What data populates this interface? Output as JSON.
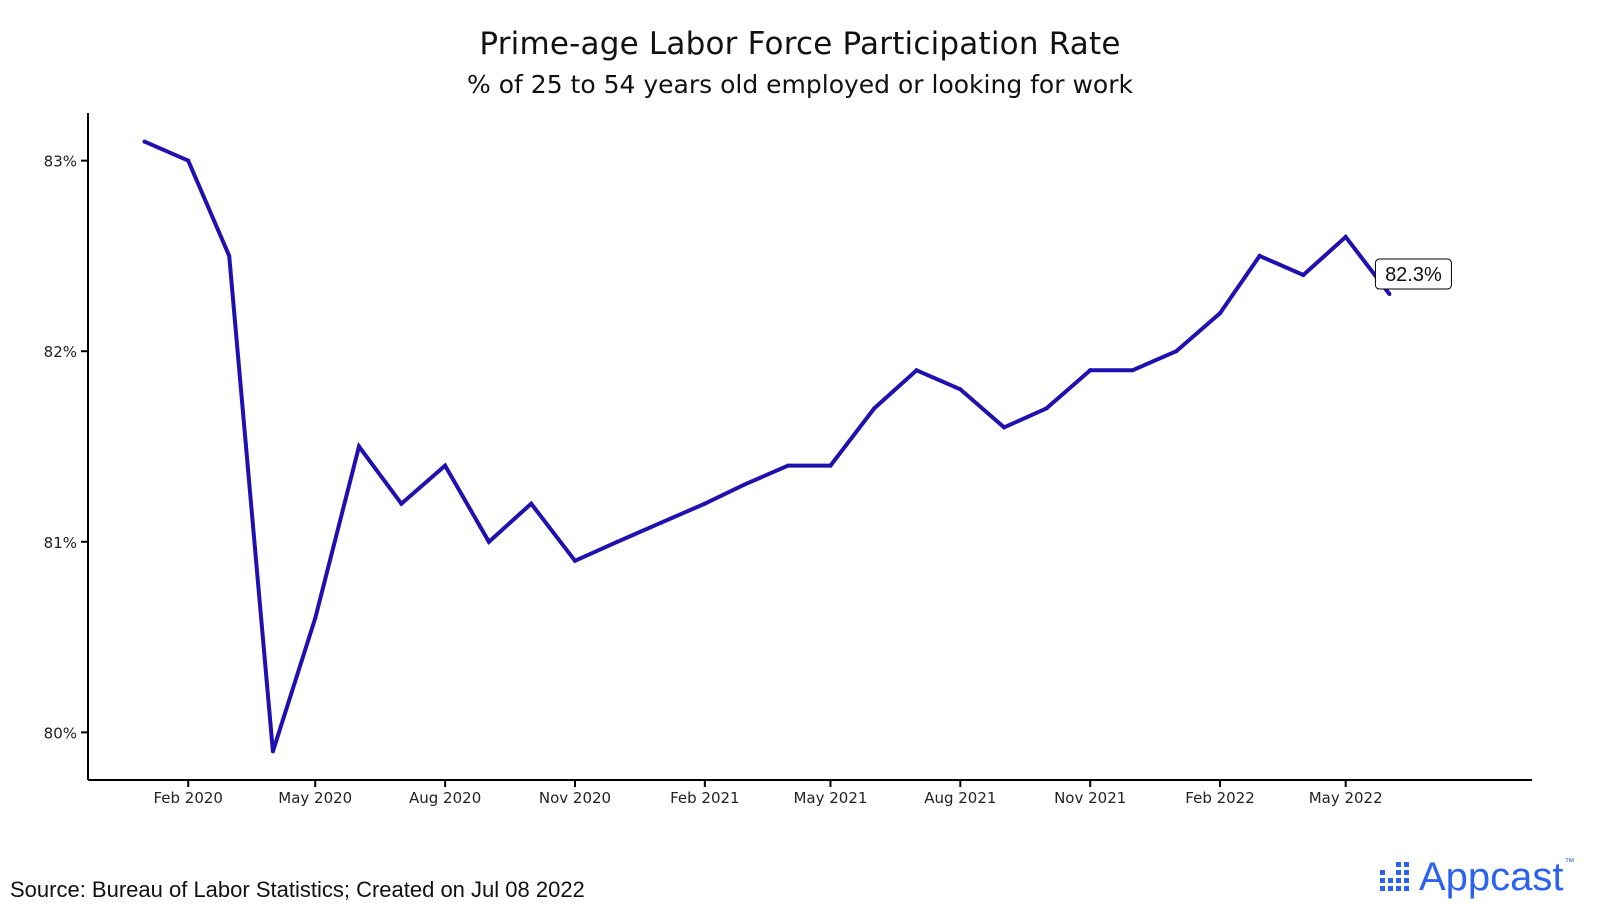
{
  "header": {
    "title": "Prime-age Labor Force Participation Rate",
    "subtitle": "% of 25 to 54 years old employed or looking for work"
  },
  "footer": {
    "source": "Source: Bureau of Labor Statistics; Created on Jul 08 2022",
    "brand": "Appcast",
    "brand_tm": "™"
  },
  "colors": {
    "line": "#2010b0",
    "axis": "#000000",
    "brand": "#2b63f0"
  },
  "chart_data": {
    "type": "line",
    "title": "Prime-age Labor Force Participation Rate",
    "subtitle": "% of 25 to 54 years old employed or looking for work",
    "xlabel": "",
    "ylabel": "",
    "grid": false,
    "ylim": [
      79.75,
      83.25
    ],
    "yticks": [
      80,
      81,
      82,
      83
    ],
    "ytick_labels": [
      "80%",
      "81%",
      "82%",
      "83%"
    ],
    "xticks": [
      "2020-02",
      "2020-05",
      "2020-08",
      "2020-11",
      "2021-02",
      "2021-05",
      "2021-08",
      "2021-11",
      "2022-02",
      "2022-05"
    ],
    "xtick_labels": [
      "Feb 2020",
      "May 2020",
      "Aug 2020",
      "Nov 2020",
      "Feb 2021",
      "May 2021",
      "Aug 2021",
      "Nov 2021",
      "Feb 2022",
      "May 2022"
    ],
    "xlim": [
      "2019-11-22",
      "2022-09-10"
    ],
    "series": [
      {
        "x": [
          "2020-01",
          "2020-02",
          "2020-03",
          "2020-04",
          "2020-05",
          "2020-06",
          "2020-07",
          "2020-08",
          "2020-09",
          "2020-10",
          "2020-11",
          "2020-12",
          "2021-01",
          "2021-02",
          "2021-03",
          "2021-04",
          "2021-05",
          "2021-06",
          "2021-07",
          "2021-08",
          "2021-09",
          "2021-10",
          "2021-11",
          "2021-12",
          "2022-01",
          "2022-02",
          "2022-03",
          "2022-04",
          "2022-05",
          "2022-06"
        ],
        "values": [
          83.1,
          83.0,
          82.5,
          79.9,
          80.6,
          81.5,
          81.2,
          81.4,
          81.0,
          81.2,
          80.9,
          81.0,
          81.1,
          81.2,
          81.3,
          81.4,
          81.4,
          81.7,
          81.9,
          81.8,
          81.6,
          81.7,
          81.9,
          81.9,
          82.0,
          82.2,
          82.5,
          82.4,
          82.6,
          82.3
        ]
      }
    ],
    "annotation": {
      "x": "2022-06",
      "value": 82.3,
      "label": "82.3%"
    }
  }
}
